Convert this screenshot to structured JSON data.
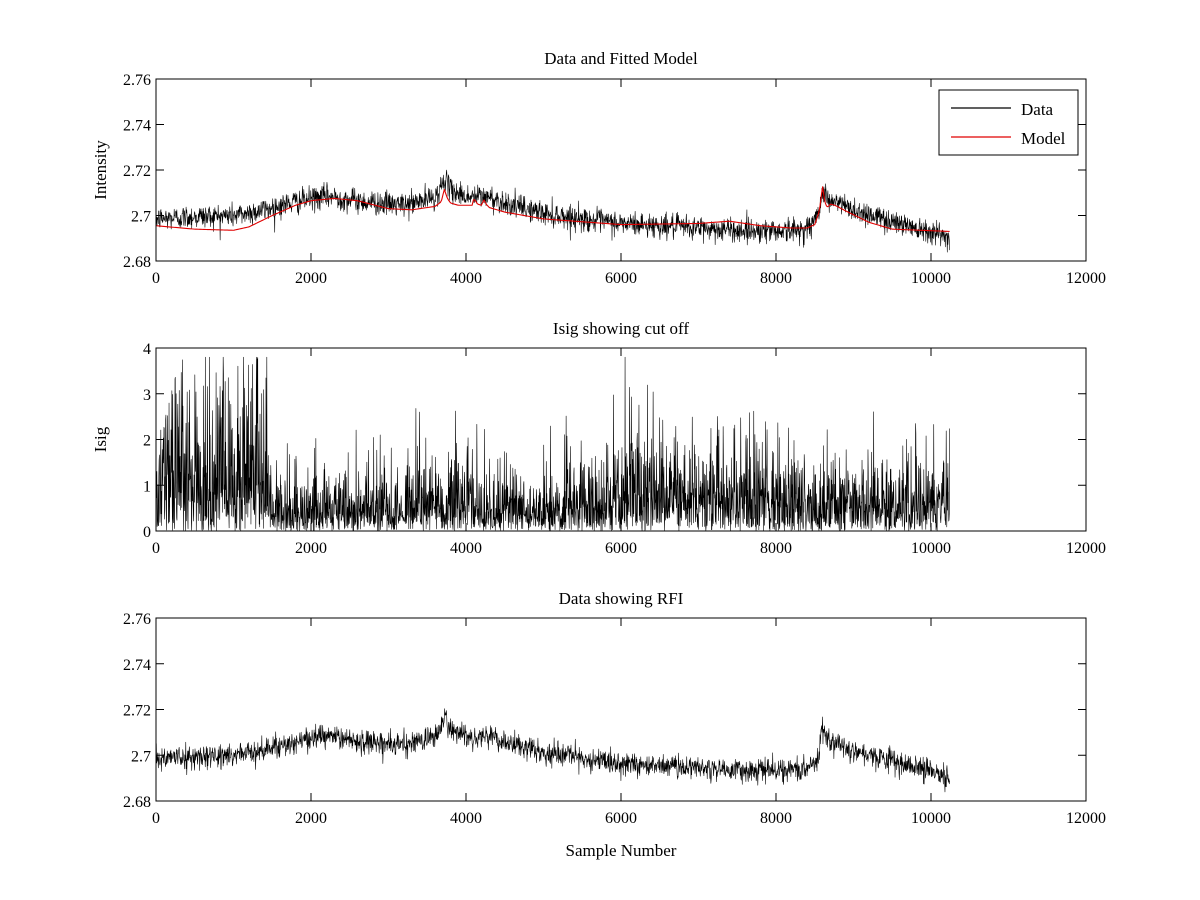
{
  "chart_data": [
    {
      "id": "top",
      "type": "line",
      "title": "Data and Fitted Model",
      "xlabel": "",
      "ylabel": "Intensity",
      "xlim": [
        0,
        12000
      ],
      "ylim": [
        2.68,
        2.76
      ],
      "xticks": [
        0,
        2000,
        4000,
        6000,
        8000,
        10000,
        12000
      ],
      "xtick_labels": [
        "0",
        "2000",
        "4000",
        "6000",
        "8000",
        "10000",
        "12000"
      ],
      "yticks": [
        2.68,
        2.7,
        2.72,
        2.74,
        2.76
      ],
      "ytick_labels": [
        "2.68",
        "2.7",
        "2.72",
        "2.74",
        "2.76"
      ],
      "grid": false,
      "legend": {
        "position": "top-right",
        "entries": [
          "Data",
          "Model"
        ]
      },
      "series": [
        {
          "name": "Data",
          "color": "#000000",
          "noise": 0.0035,
          "x": [
            0,
            500,
            1000,
            1400,
            1800,
            2200,
            2700,
            3200,
            3600,
            3700,
            3730,
            3760,
            3850,
            4000,
            4100,
            4200,
            4300,
            4600,
            5000,
            5500,
            6000,
            6500,
            7000,
            7500,
            8000,
            8300,
            8450,
            8560,
            8600,
            8640,
            8700,
            8800,
            9000,
            9300,
            9600,
            10000,
            10240
          ],
          "values": [
            2.6985,
            2.6995,
            2.7,
            2.7025,
            2.706,
            2.7085,
            2.706,
            2.7045,
            2.708,
            2.7135,
            2.718,
            2.7125,
            2.7105,
            2.7085,
            2.708,
            2.7085,
            2.708,
            2.7045,
            2.701,
            2.6985,
            2.6965,
            2.6955,
            2.6945,
            2.6935,
            2.6935,
            2.6935,
            2.6955,
            2.701,
            2.713,
            2.7085,
            2.706,
            2.7055,
            2.7025,
            2.6995,
            2.6965,
            2.6935,
            2.6895
          ]
        },
        {
          "name": "Model",
          "color": "#e00000",
          "x": [
            0,
            500,
            1000,
            1200,
            1500,
            1800,
            2000,
            2300,
            2600,
            3000,
            3300,
            3600,
            3680,
            3720,
            3760,
            3800,
            3900,
            4000,
            4080,
            4100,
            4150,
            4200,
            4230,
            4260,
            4300,
            4500,
            5000,
            6000,
            7000,
            7400,
            7800,
            8200,
            8400,
            8500,
            8560,
            8600,
            8630,
            8660,
            8700,
            8760,
            8900,
            9200,
            9500,
            10240
          ],
          "values": [
            2.6955,
            2.694,
            2.6935,
            2.695,
            2.7,
            2.7045,
            2.7065,
            2.7075,
            2.7065,
            2.703,
            2.7025,
            2.704,
            2.706,
            2.7115,
            2.7075,
            2.7055,
            2.7045,
            2.7045,
            2.7045,
            2.7075,
            2.705,
            2.7045,
            2.707,
            2.705,
            2.7035,
            2.7015,
            2.6985,
            2.696,
            2.6965,
            2.6975,
            2.6955,
            2.6945,
            2.6945,
            2.696,
            2.702,
            2.713,
            2.706,
            2.7035,
            2.705,
            2.7045,
            2.702,
            2.697,
            2.694,
            2.693
          ]
        }
      ]
    },
    {
      "id": "middle",
      "type": "line",
      "title": "Isig showing cut off",
      "xlabel": "",
      "ylabel": "Isig",
      "xlim": [
        0,
        12000
      ],
      "ylim": [
        0,
        4
      ],
      "xticks": [
        0,
        2000,
        4000,
        6000,
        8000,
        10000,
        12000
      ],
      "xtick_labels": [
        "0",
        "2000",
        "4000",
        "6000",
        "8000",
        "10000",
        "12000"
      ],
      "yticks": [
        0,
        1,
        2,
        3,
        4
      ],
      "ytick_labels": [
        "0",
        "1",
        "2",
        "3",
        "4"
      ],
      "grid": false,
      "series": [
        {
          "name": "Isig",
          "color": "#000000",
          "x": [
            0,
            300,
            600,
            900,
            1100,
            1300,
            1420,
            1500,
            2000,
            2500,
            3000,
            3500,
            3800,
            4200,
            4600,
            5000,
            5500,
            5900,
            6200,
            6600,
            7000,
            7300,
            7600,
            8000,
            8300,
            8700,
            9000,
            9500,
            10000,
            10240
          ],
          "values": [
            1.3,
            1.6,
            1.2,
            1.5,
            1.8,
            1.6,
            1.2,
            0.6,
            0.6,
            0.55,
            0.6,
            0.7,
            0.75,
            0.7,
            0.6,
            0.55,
            0.65,
            0.9,
            1.0,
            0.9,
            0.85,
            1.0,
            0.9,
            0.75,
            0.8,
            0.7,
            0.75,
            0.7,
            0.65,
            0.75
          ],
          "peak": 3.8
        }
      ]
    },
    {
      "id": "bottom",
      "type": "line",
      "title": "Data showing RFI",
      "xlabel": "Sample Number",
      "ylabel": "",
      "xlim": [
        0,
        12000
      ],
      "ylim": [
        2.68,
        2.76
      ],
      "xticks": [
        0,
        2000,
        4000,
        6000,
        8000,
        10000,
        12000
      ],
      "xtick_labels": [
        "0",
        "2000",
        "4000",
        "6000",
        "8000",
        "10000",
        "12000"
      ],
      "yticks": [
        2.68,
        2.7,
        2.72,
        2.74,
        2.76
      ],
      "ytick_labels": [
        "2.68",
        "2.7",
        "2.72",
        "2.74",
        "2.76"
      ],
      "grid": false,
      "series": [
        {
          "name": "Data",
          "color": "#000000",
          "noise": 0.0033,
          "x": [
            0,
            500,
            1000,
            1400,
            1800,
            2200,
            2700,
            3200,
            3600,
            3700,
            3730,
            3760,
            3850,
            4000,
            4100,
            4200,
            4300,
            4600,
            5000,
            5500,
            6000,
            6500,
            7000,
            7500,
            8000,
            8300,
            8450,
            8560,
            8600,
            8640,
            8700,
            8800,
            9000,
            9300,
            9600,
            10000,
            10240
          ],
          "values": [
            2.6985,
            2.6995,
            2.7,
            2.7025,
            2.706,
            2.7085,
            2.706,
            2.7045,
            2.708,
            2.7135,
            2.718,
            2.7125,
            2.7105,
            2.7085,
            2.708,
            2.7085,
            2.708,
            2.7045,
            2.701,
            2.6985,
            2.6965,
            2.6955,
            2.6945,
            2.6935,
            2.6935,
            2.6935,
            2.6955,
            2.701,
            2.713,
            2.7085,
            2.706,
            2.7055,
            2.7025,
            2.6995,
            2.6965,
            2.6935,
            2.6895
          ]
        }
      ]
    }
  ]
}
